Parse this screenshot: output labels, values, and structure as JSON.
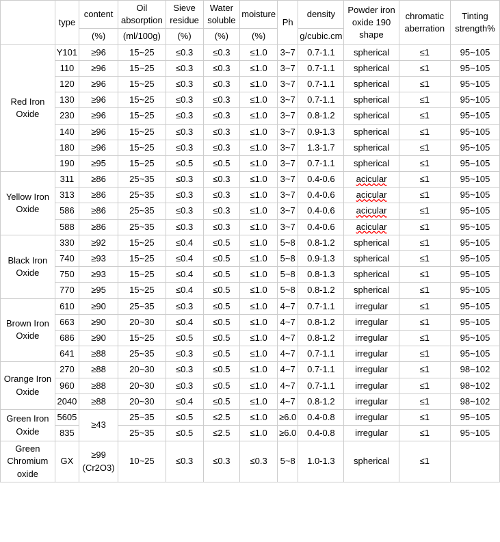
{
  "header": {
    "col_blank": "",
    "col_type": "type",
    "col_content": "content",
    "col_content_unit": "(%)",
    "col_oil": "Oil absorption",
    "col_oil_unit": "(ml/100g)",
    "col_sieve": "Sieve residue",
    "col_sieve_unit": "(%)",
    "col_water": "Water soluble",
    "col_water_unit": "(%)",
    "col_moisture": "moisture",
    "col_moisture_unit": "(%)",
    "col_ph": "Ph",
    "col_density": "density",
    "col_density_unit": "g/cubic.cm",
    "col_powder": "Powder iron oxide 190 shape",
    "col_chromatic": "chromatic aberration",
    "col_tinting": "Tinting strength%"
  },
  "groups": [
    {
      "name": "Red Iron Oxide",
      "rows": [
        {
          "type": "Y101",
          "content": "≥96",
          "oil": "15~25",
          "sieve": "≤0.3",
          "water": "≤0.3",
          "moisture": "≤1.0",
          "ph": "3~7",
          "density": "0.7-1.1",
          "shape": "spherical",
          "chrom": "≤1",
          "tint": "95~105"
        },
        {
          "type": "110",
          "content": "≥96",
          "oil": "15~25",
          "sieve": "≤0.3",
          "water": "≤0.3",
          "moisture": "≤1.0",
          "ph": "3~7",
          "density": "0.7-1.1",
          "shape": "spherical",
          "chrom": "≤1",
          "tint": "95~105"
        },
        {
          "type": "120",
          "content": "≥96",
          "oil": "15~25",
          "sieve": "≤0.3",
          "water": "≤0.3",
          "moisture": "≤1.0",
          "ph": "3~7",
          "density": "0.7-1.1",
          "shape": "spherical",
          "chrom": "≤1",
          "tint": "95~105"
        },
        {
          "type": "130",
          "content": "≥96",
          "oil": "15~25",
          "sieve": "≤0.3",
          "water": "≤0.3",
          "moisture": "≤1.0",
          "ph": "3~7",
          "density": "0.7-1.1",
          "shape": "spherical",
          "chrom": "≤1",
          "tint": "95~105"
        },
        {
          "type": "230",
          "content": "≥96",
          "oil": "15~25",
          "sieve": "≤0.3",
          "water": "≤0.3",
          "moisture": "≤1.0",
          "ph": "3~7",
          "density": "0.8-1.2",
          "shape": "spherical",
          "chrom": "≤1",
          "tint": "95~105"
        },
        {
          "type": "140",
          "content": "≥96",
          "oil": "15~25",
          "sieve": "≤0.3",
          "water": "≤0.3",
          "moisture": "≤1.0",
          "ph": "3~7",
          "density": "0.9-1.3",
          "shape": "spherical",
          "chrom": "≤1",
          "tint": "95~105"
        },
        {
          "type": "180",
          "content": "≥96",
          "oil": "15~25",
          "sieve": "≤0.3",
          "water": "≤0.3",
          "moisture": "≤1.0",
          "ph": "3~7",
          "density": "1.3-1.7",
          "shape": "spherical",
          "chrom": "≤1",
          "tint": "95~105"
        },
        {
          "type": "190",
          "content": "≥95",
          "oil": "15~25",
          "sieve": "≤0.5",
          "water": "≤0.5",
          "moisture": "≤1.0",
          "ph": "3~7",
          "density": "0.7-1.1",
          "shape": "spherical",
          "chrom": "≤1",
          "tint": "95~105"
        }
      ]
    },
    {
      "name": "Yellow Iron Oxide",
      "rows": [
        {
          "type": "311",
          "content": "≥86",
          "oil": "25~35",
          "sieve": "≤0.3",
          "water": "≤0.3",
          "moisture": "≤1.0",
          "ph": "3~7",
          "density": "0.4-0.6",
          "shape": "acicular",
          "chrom": "≤1",
          "tint": "95~105",
          "shape_style": "acicular"
        },
        {
          "type": "313",
          "content": "≥86",
          "oil": "25~35",
          "sieve": "≤0.3",
          "water": "≤0.3",
          "moisture": "≤1.0",
          "ph": "3~7",
          "density": "0.4-0.6",
          "shape": "acicular",
          "chrom": "≤1",
          "tint": "95~105",
          "shape_style": "acicular"
        },
        {
          "type": "586",
          "content": "≥86",
          "oil": "25~35",
          "sieve": "≤0.3",
          "water": "≤0.3",
          "moisture": "≤1.0",
          "ph": "3~7",
          "density": "0.4-0.6",
          "shape": "acicular",
          "chrom": "≤1",
          "tint": "95~105",
          "shape_style": "acicular"
        },
        {
          "type": "588",
          "content": "≥86",
          "oil": "25~35",
          "sieve": "≤0.3",
          "water": "≤0.3",
          "moisture": "≤1.0",
          "ph": "3~7",
          "density": "0.4-0.6",
          "shape": "acicular",
          "chrom": "≤1",
          "tint": "95~105",
          "shape_style": "acicular"
        }
      ]
    },
    {
      "name": "Black Iron Oxide",
      "rows": [
        {
          "type": "330",
          "content": "≥92",
          "oil": "15~25",
          "sieve": "≤0.4",
          "water": "≤0.5",
          "moisture": "≤1.0",
          "ph": "5~8",
          "density": "0.8-1.2",
          "shape": "spherical",
          "chrom": "≤1",
          "tint": "95~105"
        },
        {
          "type": "740",
          "content": "≥93",
          "oil": "15~25",
          "sieve": "≤0.4",
          "water": "≤0.5",
          "moisture": "≤1.0",
          "ph": "5~8",
          "density": "0.9-1.3",
          "shape": "spherical",
          "chrom": "≤1",
          "tint": "95~105"
        },
        {
          "type": "750",
          "content": "≥93",
          "oil": "15~25",
          "sieve": "≤0.4",
          "water": "≤0.5",
          "moisture": "≤1.0",
          "ph": "5~8",
          "density": "0.8-1.3",
          "shape": "spherical",
          "chrom": "≤1",
          "tint": "95~105"
        },
        {
          "type": "770",
          "content": "≥95",
          "oil": "15~25",
          "sieve": "≤0.4",
          "water": "≤0.5",
          "moisture": "≤1.0",
          "ph": "5~8",
          "density": "0.8-1.2",
          "shape": "spherical",
          "chrom": "≤1",
          "tint": "95~105"
        }
      ]
    },
    {
      "name": "Brown Iron Oxide",
      "rows": [
        {
          "type": "610",
          "content": "≥90",
          "oil": "25~35",
          "sieve": "≤0.3",
          "water": "≤0.5",
          "moisture": "≤1.0",
          "ph": "4~7",
          "density": "0.7-1.1",
          "shape": "irregular",
          "chrom": "≤1",
          "tint": "95~105"
        },
        {
          "type": "663",
          "content": "≥90",
          "oil": "20~30",
          "sieve": "≤0.4",
          "water": "≤0.5",
          "moisture": "≤1.0",
          "ph": "4~7",
          "density": "0.8-1.2",
          "shape": "irregular",
          "chrom": "≤1",
          "tint": "95~105"
        },
        {
          "type": "686",
          "content": "≥90",
          "oil": "15~25",
          "sieve": "≤0.5",
          "water": "≤0.5",
          "moisture": "≤1.0",
          "ph": "4~7",
          "density": "0.8-1.2",
          "shape": "irregular",
          "chrom": "≤1",
          "tint": "95~105"
        },
        {
          "type": "641",
          "content": "≥88",
          "oil": "25~35",
          "sieve": "≤0.3",
          "water": "≤0.5",
          "moisture": "≤1.0",
          "ph": "4~7",
          "density": "0.7-1.1",
          "shape": "irregular",
          "chrom": "≤1",
          "tint": "95~105"
        }
      ]
    },
    {
      "name": "Orange Iron Oxide",
      "rows": [
        {
          "type": "270",
          "content": "≥88",
          "oil": "20~30",
          "sieve": "≤0.3",
          "water": "≤0.5",
          "moisture": "≤1.0",
          "ph": "4~7",
          "density": "0.7-1.1",
          "shape": "irregular",
          "chrom": "≤1",
          "tint": "98~102"
        },
        {
          "type": "960",
          "content": "≥88",
          "oil": "20~30",
          "sieve": "≤0.3",
          "water": "≤0.5",
          "moisture": "≤1.0",
          "ph": "4~7",
          "density": "0.7-1.1",
          "shape": "irregular",
          "chrom": "≤1",
          "tint": "98~102"
        },
        {
          "type": "2040",
          "content": "≥88",
          "oil": "20~30",
          "sieve": "≤0.4",
          "water": "≤0.5",
          "moisture": "≤1.0",
          "ph": "4~7",
          "density": "0.8-1.2",
          "shape": "irregular",
          "chrom": "≤1",
          "tint": "98~102"
        }
      ]
    },
    {
      "name": "Green Iron Oxide",
      "rows": [
        {
          "type": "5605",
          "content": "≥43",
          "oil": "25~35",
          "sieve": "≤0.5",
          "water": "≤2.5",
          "moisture": "≤1.0",
          "ph": "≥6.0",
          "density": "0.4-0.8",
          "shape": "irregular",
          "chrom": "≤1",
          "tint": "95~105",
          "content_rowspan": true
        },
        {
          "type": "835",
          "content": "",
          "oil": "25~35",
          "sieve": "≤0.5",
          "water": "≤2.5",
          "moisture": "≤1.0",
          "ph": "≥6.0",
          "density": "0.4-0.8",
          "shape": "irregular",
          "chrom": "≤1",
          "tint": "95~105"
        }
      ]
    },
    {
      "name": "Green Chromium oxide",
      "rows": [
        {
          "type": "GX",
          "content": "≥99 (Cr2O3)",
          "oil": "10~25",
          "sieve": "≤0.3",
          "water": "≤0.3",
          "moisture": "≤0.3",
          "ph": "5~8",
          "density": "1.0-1.3",
          "shape": "spherical",
          "chrom": "≤1",
          "tint": ""
        }
      ]
    }
  ]
}
